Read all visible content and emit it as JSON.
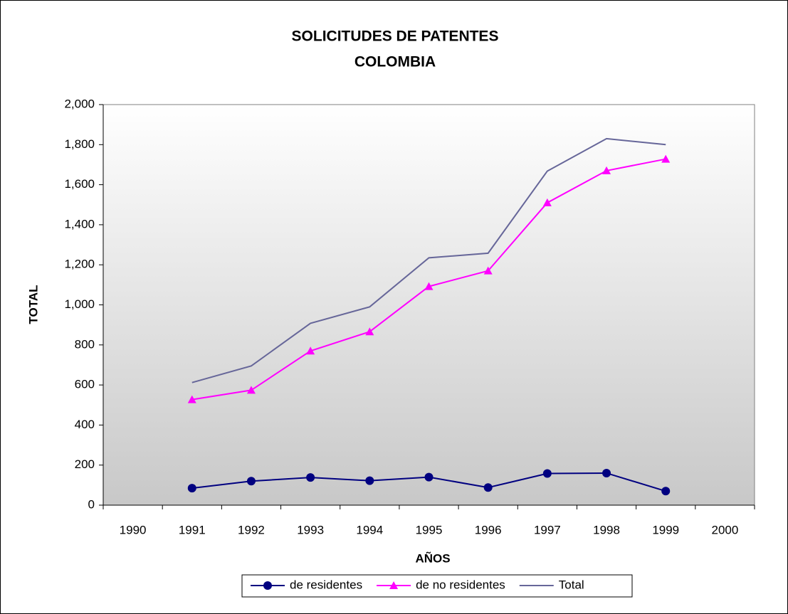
{
  "chart_data": {
    "type": "line",
    "title": [
      "SOLICITUDES DE PATENTES",
      "COLOMBIA"
    ],
    "x_label": "AÑOS",
    "y_label": "TOTAL",
    "categories": [
      "1990",
      "1991",
      "1992",
      "1993",
      "1994",
      "1995",
      "1996",
      "1997",
      "1998",
      "1999",
      "2000"
    ],
    "series": [
      {
        "name": "de residentes",
        "color": "#000080",
        "marker": "circle",
        "values": [
          null,
          85,
          120,
          138,
          122,
          140,
          88,
          158,
          160,
          70,
          null
        ]
      },
      {
        "name": "de no residentes",
        "color": "#ff00ff",
        "marker": "triangle",
        "values": [
          null,
          527,
          574,
          770,
          866,
          1092,
          1170,
          1510,
          1670,
          1728,
          null
        ]
      },
      {
        "name": "Total",
        "color": "#666699",
        "values": [
          null,
          612,
          695,
          908,
          990,
          1235,
          1258,
          1668,
          1830,
          1800,
          null
        ]
      }
    ],
    "ylim": [
      0,
      2000
    ],
    "yticks": [
      0,
      200,
      400,
      600,
      800,
      {
        "value": 1000,
        "label": "1,000"
      },
      {
        "value": 1200,
        "label": "1,200"
      },
      {
        "value": 1400,
        "label": "1,400"
      },
      {
        "value": 1600,
        "label": "1,600"
      },
      {
        "value": 1800,
        "label": "1,800"
      },
      {
        "value": 2000,
        "label": "2,000"
      }
    ],
    "legend": "bottom"
  }
}
